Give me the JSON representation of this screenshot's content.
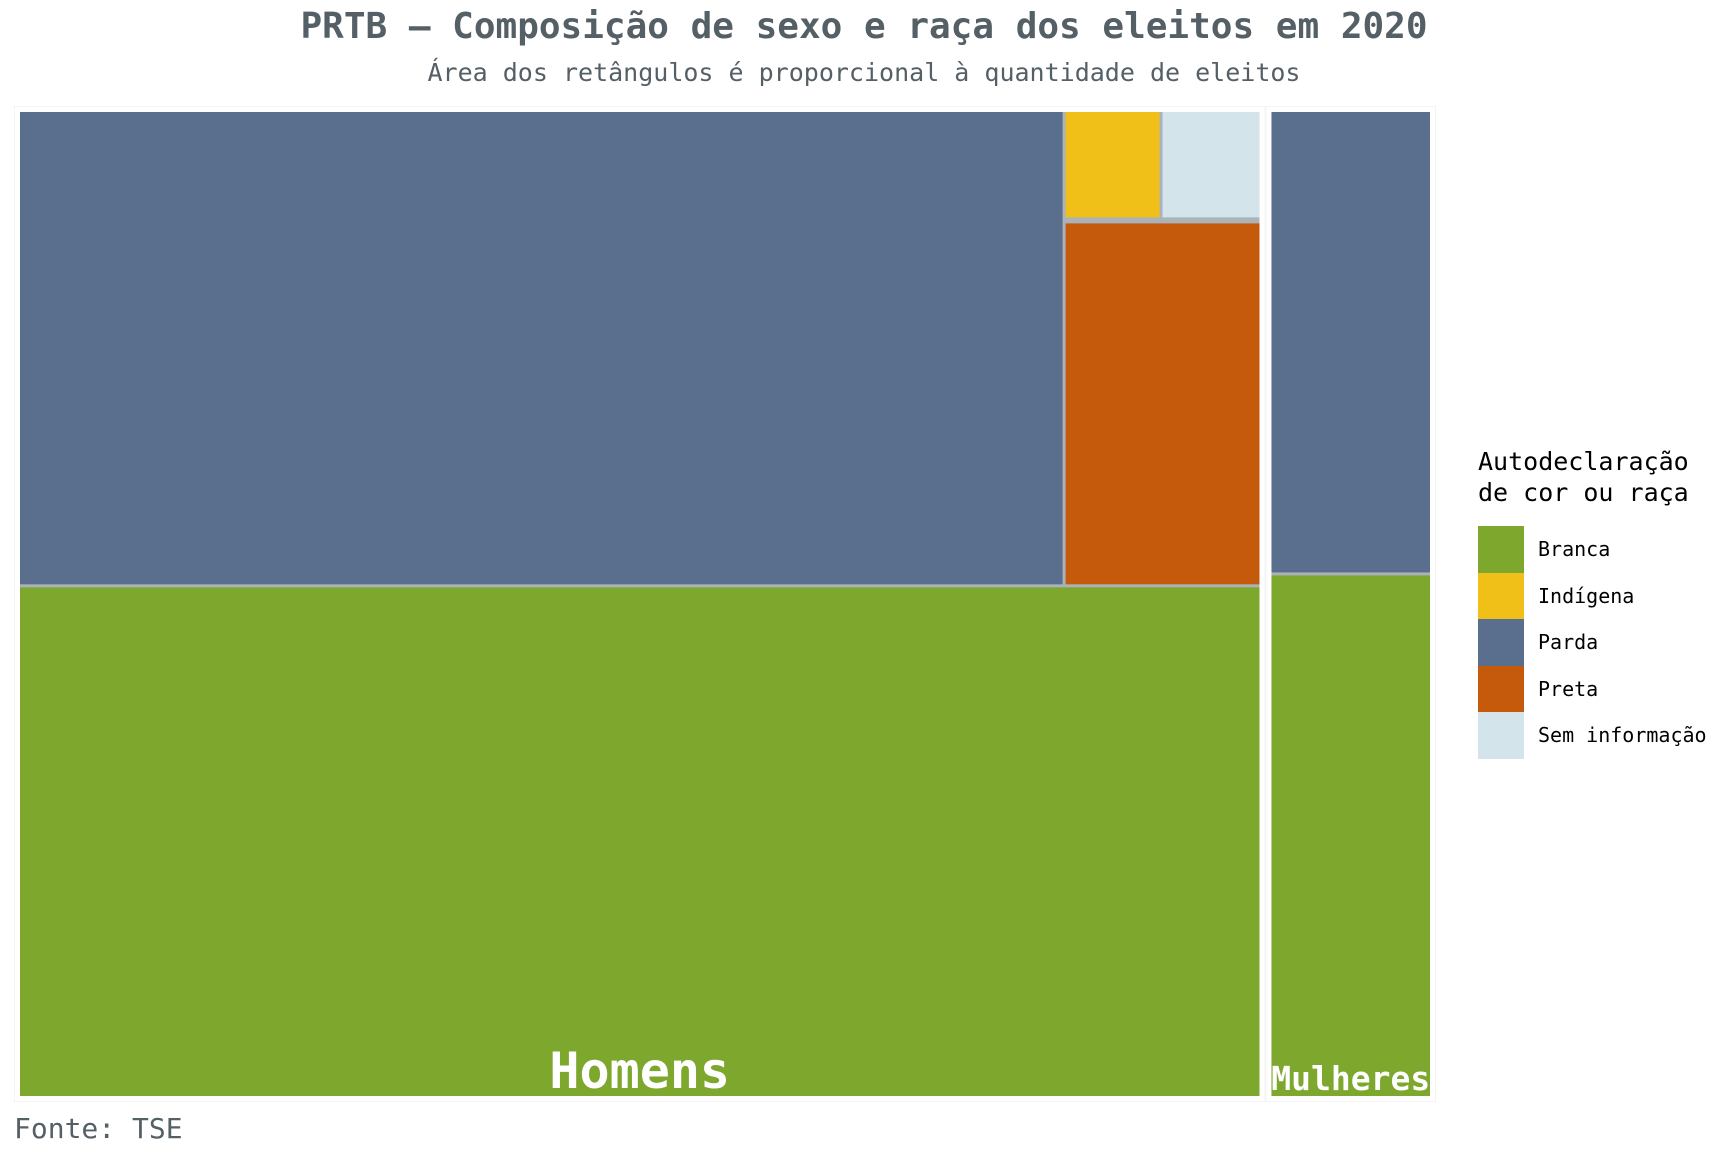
{
  "title": "PRTB – Composição de sexo e raça dos eleitos em 2020",
  "subtitle": "Área dos retângulos é proporcional à quantidade de eleitos",
  "source": "Fonte: TSE",
  "legend": {
    "title": "Autodeclaração de cor ou raça",
    "items": [
      {
        "label": "Branca",
        "color": "#7da72d"
      },
      {
        "label": "Indígena",
        "color": "#f0c019"
      },
      {
        "label": "Parda",
        "color": "#5a6e8e"
      },
      {
        "label": "Preta",
        "color": "#c55a0c"
      },
      {
        "label": "Sem informação",
        "color": "#d4e4eb"
      }
    ]
  },
  "chart_data": {
    "type": "treemap",
    "note_values": "estimated relative areas (share of total elected)",
    "groups": [
      {
        "name": "Homens",
        "children": [
          {
            "category": "Branca",
            "value": 41.6
          },
          {
            "category": "Parda",
            "value": 32.3
          },
          {
            "category": "Preta",
            "value": 4.7
          },
          {
            "category": "Indígena",
            "value": 0.7
          },
          {
            "category": "Sem informação",
            "value": 0.7
          }
        ]
      },
      {
        "name": "Mulheres",
        "children": [
          {
            "category": "Branca",
            "value": 5.8
          },
          {
            "category": "Parda",
            "value": 5.1
          }
        ]
      }
    ]
  }
}
